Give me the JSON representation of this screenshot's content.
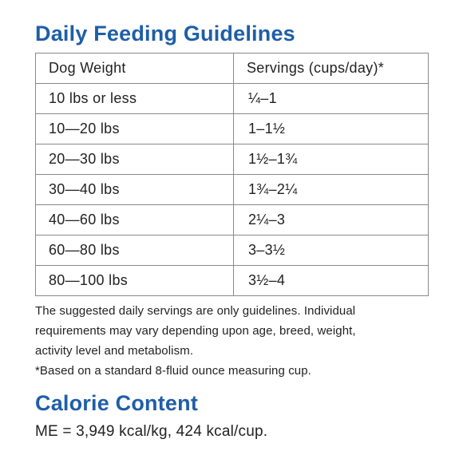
{
  "feeding": {
    "title": "Daily Feeding Guidelines",
    "headers": {
      "weight": "Dog Weight",
      "servings": "Servings (cups/day)*"
    },
    "rows": [
      {
        "weight": "10 lbs or less",
        "servings": "¼–1"
      },
      {
        "weight": "10—20 lbs",
        "servings": "1–1½"
      },
      {
        "weight": "20—30 lbs",
        "servings": "1½–1¾"
      },
      {
        "weight": "30—40 lbs",
        "servings": "1¾–2¼"
      },
      {
        "weight": "40—60 lbs",
        "servings": "2¼–3"
      },
      {
        "weight": "60—80 lbs",
        "servings": "3–3½"
      },
      {
        "weight": "80—100 lbs",
        "servings": "3½–4"
      }
    ],
    "notes": [
      "The suggested daily servings are only guidelines. Individual",
      "requirements may vary depending upon age, breed, weight,",
      "activity level and metabolism.",
      "*Based on a standard 8-fluid ounce measuring cup."
    ]
  },
  "calorie": {
    "title": "Calorie Content",
    "text": "ME = 3,949 kcal/kg, 424 kcal/cup."
  },
  "colors": {
    "heading": "#1f5ea8",
    "text": "#222222",
    "border": "#8a8a8a"
  }
}
